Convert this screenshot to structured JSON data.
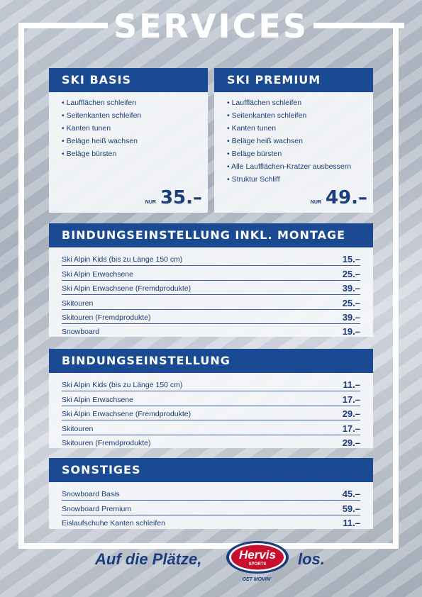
{
  "title": "SERVICES",
  "ski_basis": {
    "title": "SKI BASIS",
    "items": [
      "Laufflächen schleifen",
      "Seitenkanten schleifen",
      "Kanten tunen",
      "Beläge heiß wachsen",
      "Beläge bürsten"
    ],
    "price_prefix": "NUR",
    "price": "35.–"
  },
  "ski_premium": {
    "title": "SKI PREMIUM",
    "items": [
      "Laufflächen schleifen",
      "Seitenkanten schleifen",
      "Kanten tunen",
      "Beläge heiß wachsen",
      "Beläge bürsten",
      "Alle Laufflächen-Kratzer ausbessern",
      "Struktur Schliff"
    ],
    "price_prefix": "NUR",
    "price": "49.–"
  },
  "bindung_montage": {
    "title": "BINDUNGSEINSTELLUNG INKL. MONTAGE",
    "rows": [
      {
        "label": "Ski Alpin Kids (bis zu Länge 150 cm)",
        "price": "15.–"
      },
      {
        "label": "Ski Alpin Erwachsene",
        "price": "25.–"
      },
      {
        "label": "Ski Alpin Erwachsene (Fremdprodukte)",
        "price": "39.–"
      },
      {
        "label": "Skitouren",
        "price": "25.–"
      },
      {
        "label": "Skitouren (Fremdprodukte)",
        "price": "39.–"
      },
      {
        "label": "Snowboard",
        "price": "19.–"
      }
    ]
  },
  "bindung": {
    "title": "BINDUNGSEINSTELLUNG",
    "rows": [
      {
        "label": "Ski Alpin Kids (bis zu Länge 150 cm)",
        "price": "11.–"
      },
      {
        "label": "Ski Alpin Erwachsene",
        "price": "17.–"
      },
      {
        "label": "Ski Alpin Erwachsene (Fremdprodukte)",
        "price": "29.–"
      },
      {
        "label": "Skitouren",
        "price": "17.–"
      },
      {
        "label": "Skitouren (Fremdprodukte)",
        "price": "29.–"
      }
    ]
  },
  "sonstiges": {
    "title": "SONSTIGES",
    "rows": [
      {
        "label": "Snowboard Basis",
        "price": "45.–"
      },
      {
        "label": "Snowboard Premium",
        "price": "59.–"
      },
      {
        "label": "Eislaufschuhe Kanten schleifen",
        "price": "11.–"
      }
    ]
  },
  "footer": {
    "slogan_left": "Auf die Plätze,",
    "slogan_right": "los.",
    "logo_text": "Hervis",
    "logo_sub": "SPORTS",
    "tagline": "GET MOVIN'"
  },
  "colors": {
    "brand_blue": "#1a4a92",
    "brand_red": "#c8102e",
    "text_blue": "#1a3d7c"
  }
}
